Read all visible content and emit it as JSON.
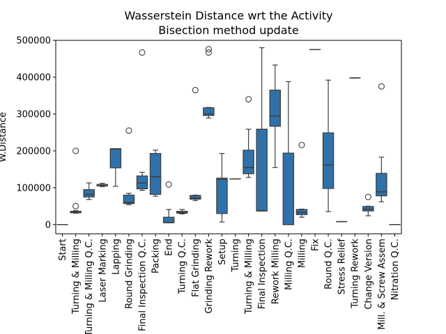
{
  "chart_data": {
    "type": "box",
    "title": [
      "Wasserstein Distance wrt the Activity",
      "Bisection method update"
    ],
    "xlabel": "",
    "ylabel": "W.Distance",
    "ylim": [
      -25000,
      500000
    ],
    "yticks": [
      0,
      100000,
      200000,
      300000,
      400000,
      500000
    ],
    "ytick_labels": [
      "0",
      "100000",
      "200000",
      "300000",
      "400000",
      "500000"
    ],
    "box_color": "#2f71a8",
    "edge_color": "#3d3d3d",
    "grid": false,
    "legend": "none",
    "categories": [
      "Start",
      "Turning & Milling",
      "Turning & Milling Q.C.",
      "Laser Marking",
      "Lapping",
      "Round Grinding",
      "Final Inspection Q.C.",
      "Packing",
      "End",
      "Turning Q.C.",
      "Flat Grinding",
      "Grinding Rework",
      "Setup",
      "Turning",
      "Turning & Milling",
      "Final Inspection",
      "Rework Milling",
      "Milling Q.C.",
      "Milling",
      "Fix",
      "Round Q.C.",
      "Stress Relief",
      "Turning Rework",
      "Change Version",
      "Mill. & Screw Assem",
      "Nitration Q.C."
    ],
    "boxes": [
      {
        "min": 0,
        "q1": 0,
        "median": 0,
        "q3": 0,
        "max": 0,
        "outliers": []
      },
      {
        "min": 31000,
        "q1": 32000,
        "median": 34000,
        "q3": 36000,
        "max": 38000,
        "outliers": [
          50000,
          200000
        ]
      },
      {
        "min": 68000,
        "q1": 75000,
        "median": 82000,
        "q3": 95000,
        "max": 113000,
        "outliers": []
      },
      {
        "min": 103000,
        "q1": 105000,
        "median": 106000,
        "q3": 109000,
        "max": 112000,
        "outliers": []
      },
      {
        "min": 104000,
        "q1": 154000,
        "median": 205000,
        "q3": 206000,
        "max": 206000,
        "outliers": []
      },
      {
        "min": 54000,
        "q1": 57000,
        "median": 60000,
        "q3": 80000,
        "max": 85000,
        "outliers": [
          255000
        ]
      },
      {
        "min": 93000,
        "q1": 97000,
        "median": 113000,
        "q3": 132000,
        "max": 142000,
        "outliers": [
          467000
        ]
      },
      {
        "min": 77000,
        "q1": 82000,
        "median": 130000,
        "q3": 193000,
        "max": 202000,
        "outliers": []
      },
      {
        "min": 5000,
        "q1": 5000,
        "median": 6000,
        "q3": 20000,
        "max": 41000,
        "outliers": [
          109000
        ]
      },
      {
        "min": 29000,
        "q1": 31000,
        "median": 33000,
        "q3": 36000,
        "max": 41000,
        "outliers": []
      },
      {
        "min": 65000,
        "q1": 69000,
        "median": 72000,
        "q3": 79000,
        "max": 80000,
        "outliers": [
          365000
        ]
      },
      {
        "min": 289000,
        "q1": 296000,
        "median": 300000,
        "q3": 317000,
        "max": 318000,
        "outliers": [
          467000,
          476000
        ]
      },
      {
        "min": 7000,
        "q1": 30000,
        "median": 123000,
        "q3": 126000,
        "max": 193000,
        "outliers": []
      },
      {
        "min": 124000,
        "q1": 124000,
        "median": 124000,
        "q3": 124000,
        "max": 124000,
        "outliers": []
      },
      {
        "min": 128000,
        "q1": 138000,
        "median": 155000,
        "q3": 202000,
        "max": 259000,
        "outliers": [
          340000
        ]
      },
      {
        "min": 37000,
        "q1": 37000,
        "median": 37000,
        "q3": 259000,
        "max": 480000,
        "outliers": []
      },
      {
        "min": 155000,
        "q1": 267000,
        "median": 295000,
        "q3": 365000,
        "max": 433000,
        "outliers": []
      },
      {
        "min": 0,
        "q1": 0,
        "median": 0,
        "q3": 194000,
        "max": 388000,
        "outliers": []
      },
      {
        "min": 20000,
        "q1": 27000,
        "median": 33000,
        "q3": 41000,
        "max": 42000,
        "outliers": [
          216000
        ]
      },
      {
        "min": 475000,
        "q1": 475000,
        "median": 475000,
        "q3": 475000,
        "max": 475000,
        "outliers": []
      },
      {
        "min": 35000,
        "q1": 98000,
        "median": 162000,
        "q3": 249000,
        "max": 392000,
        "outliers": []
      },
      {
        "min": 8000,
        "q1": 8000,
        "median": 8000,
        "q3": 8000,
        "max": 8000,
        "outliers": []
      },
      {
        "min": 398000,
        "q1": 398000,
        "median": 398000,
        "q3": 398000,
        "max": 398000,
        "outliers": []
      },
      {
        "min": 24000,
        "q1": 37000,
        "median": 42000,
        "q3": 49000,
        "max": 50000,
        "outliers": [
          75000
        ]
      },
      {
        "min": 62000,
        "q1": 78000,
        "median": 89000,
        "q3": 139000,
        "max": 183000,
        "outliers": [
          375000
        ]
      },
      {
        "min": 0,
        "q1": 0,
        "median": 0,
        "q3": 0,
        "max": 0,
        "outliers": []
      }
    ]
  }
}
